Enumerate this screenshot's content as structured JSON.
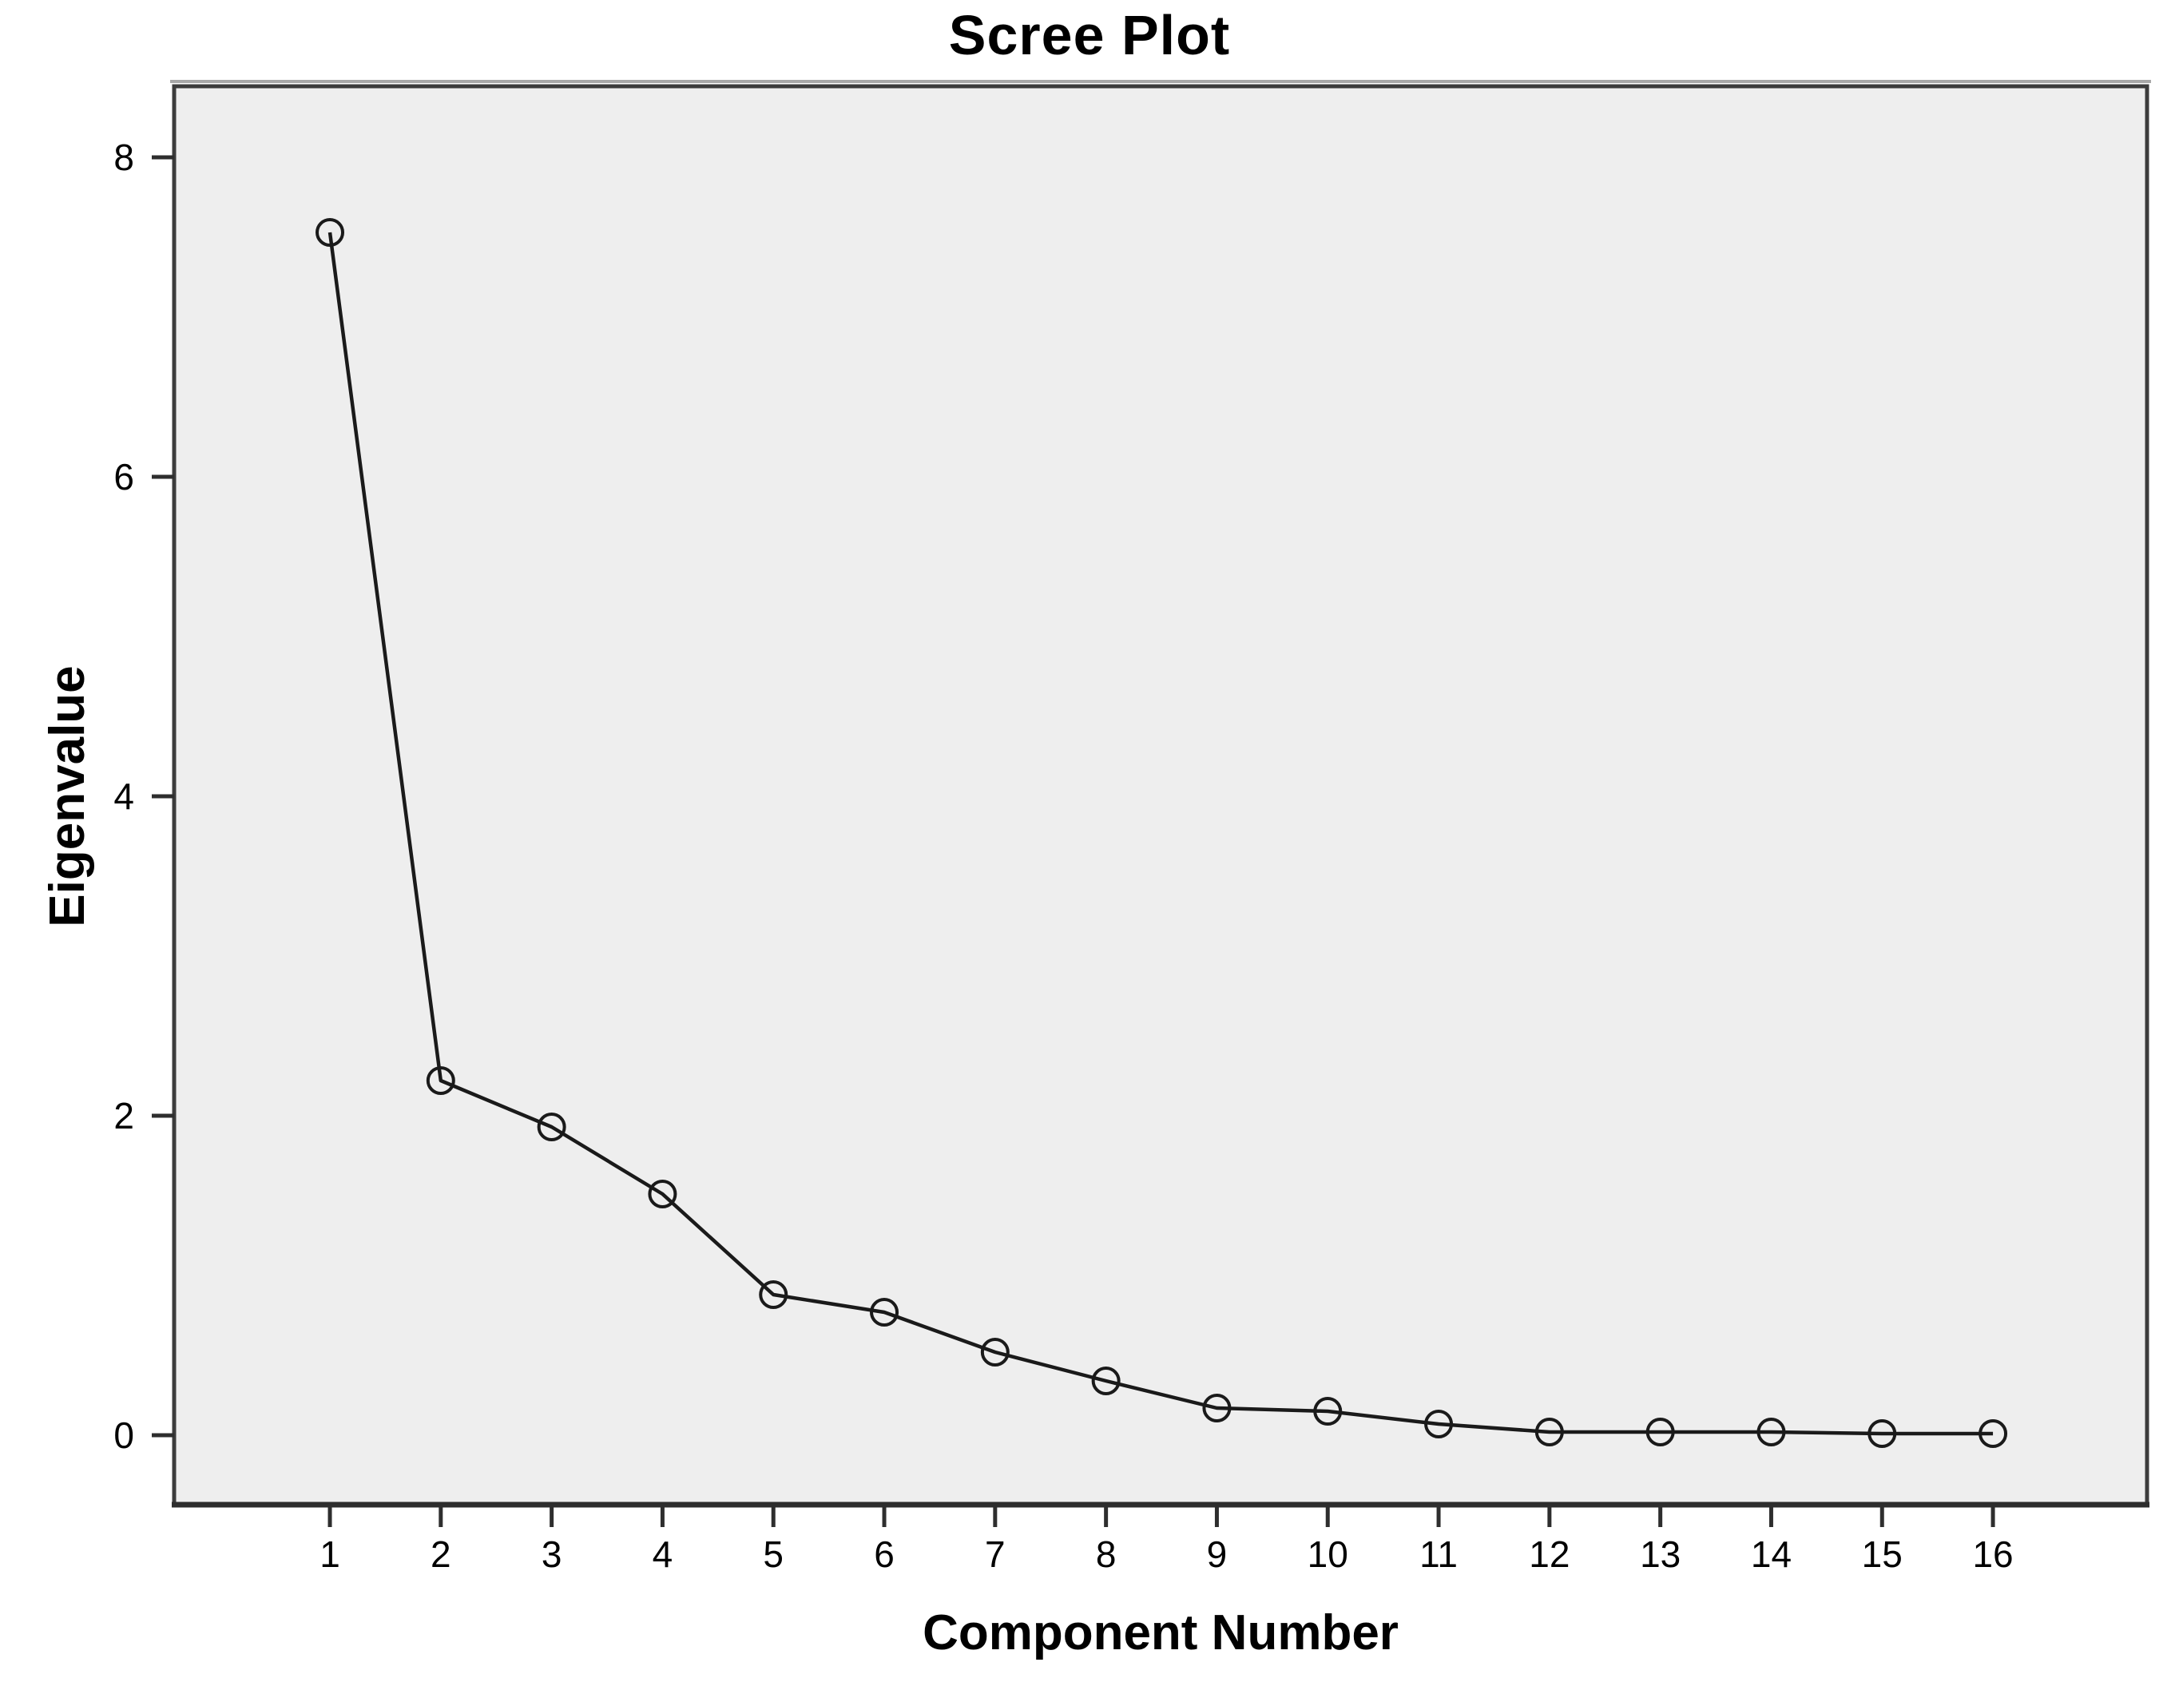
{
  "figure": {
    "kind": "statistical-output-chart",
    "background": "#ffffff"
  },
  "chart_data": {
    "type": "line",
    "title": "Scree Plot",
    "xlabel": "Component Number",
    "ylabel": "Eigenvalue",
    "categories": [
      1,
      2,
      3,
      4,
      5,
      6,
      7,
      8,
      9,
      10,
      11,
      12,
      13,
      14,
      15,
      16
    ],
    "values": [
      7.53,
      2.22,
      1.93,
      1.51,
      0.88,
      0.77,
      0.52,
      0.34,
      0.17,
      0.15,
      0.07,
      0.02,
      0.02,
      0.02,
      0.01,
      0.01
    ],
    "series_name": "Eigenvalue",
    "xticks": [
      1,
      2,
      3,
      4,
      5,
      6,
      7,
      8,
      9,
      10,
      11,
      12,
      13,
      14,
      15,
      16
    ],
    "yticks": [
      0,
      2,
      4,
      6,
      8
    ],
    "xlim": [
      -0.405,
      17.39
    ],
    "ylim": [
      -0.435,
      8.445
    ],
    "grid": false,
    "legend": null,
    "marker": "open-circle",
    "colors": {
      "panel_background": "#eeeeee",
      "frame": "#3c3c3c",
      "frame_bevel": "#a8a8a8",
      "line": "#1a1a1a",
      "marker_stroke": "#1a1a1a",
      "text": "#000000"
    }
  }
}
